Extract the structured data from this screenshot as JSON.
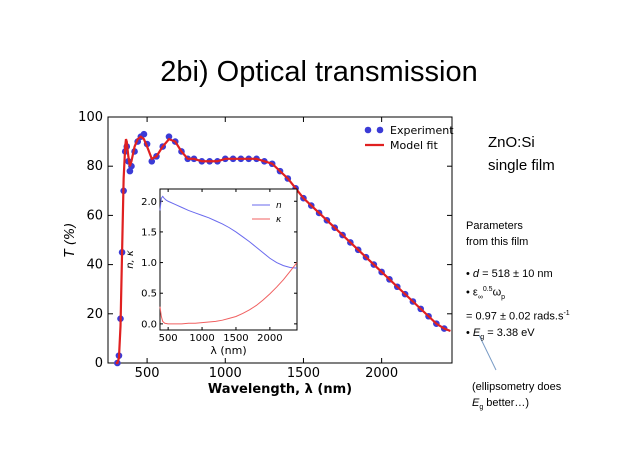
{
  "slide": {
    "title": "2bi) Optical transmission",
    "sample_label": [
      "ZnO:Si",
      "single film"
    ],
    "params_heading": [
      "Parameters",
      "from this film"
    ],
    "params": {
      "d_sym": "d",
      "d_val": " = 518 ± 10 nm",
      "eps_sym": "ε",
      "eps_sub": "∞",
      "eps_sup": "0.5",
      "omega_sym": "ω",
      "omega_sub": "p",
      "eps_val": "= 0.97 ± 0.02 rads.s",
      "eps_unit_sup": "-1",
      "eg_sym": "E",
      "eg_sub": "g",
      "eg_val": " = 3.38 eV",
      "bullet": "•"
    },
    "note": {
      "line1": "(ellipsometry does",
      "sym": "E",
      "sub": "g",
      "line2_rest": " better…)"
    },
    "colors": {
      "experiment": "#3b3bd6",
      "model": "#e02020",
      "n": "#6a6aee",
      "k": "#f06060"
    }
  },
  "chart_data": [
    {
      "type": "scatter",
      "xlabel": "Wavelength, λ (nm)",
      "ylabel": "T (%)",
      "xlim": [
        250,
        2450
      ],
      "ylim": [
        0,
        100
      ],
      "xticks": [
        500,
        1000,
        1500,
        2000
      ],
      "yticks": [
        0,
        20,
        40,
        60,
        80,
        100
      ],
      "legend": {
        "position": "top-right",
        "entries": [
          "Experiment",
          "Model fit"
        ]
      },
      "series": [
        {
          "name": "Experiment",
          "style": "markers",
          "x": [
            310,
            320,
            330,
            340,
            350,
            360,
            370,
            380,
            390,
            400,
            420,
            440,
            460,
            480,
            500,
            530,
            560,
            600,
            640,
            680,
            720,
            760,
            800,
            850,
            900,
            950,
            1000,
            1050,
            1100,
            1150,
            1200,
            1250,
            1300,
            1350,
            1400,
            1450,
            1500,
            1550,
            1600,
            1650,
            1700,
            1750,
            1800,
            1850,
            1900,
            1950,
            2000,
            2050,
            2100,
            2150,
            2200,
            2250,
            2300,
            2350,
            2400
          ],
          "y": [
            0,
            3,
            18,
            45,
            70,
            86,
            88,
            82,
            78,
            80,
            86,
            90,
            92,
            93,
            89,
            82,
            84,
            88,
            92,
            90,
            86,
            83,
            83,
            82,
            82,
            82,
            83,
            83,
            83,
            83,
            83,
            82,
            81,
            78,
            75,
            71,
            67,
            64,
            61,
            58,
            55,
            52,
            49,
            46,
            43,
            40,
            37,
            34,
            31,
            28,
            25,
            22,
            19,
            16,
            14
          ]
        },
        {
          "name": "Model fit",
          "style": "line",
          "x": [
            300,
            310,
            320,
            330,
            340,
            350,
            360,
            365,
            370,
            380,
            390,
            400,
            420,
            440,
            460,
            480,
            500,
            530,
            560,
            600,
            640,
            680,
            720,
            760,
            800,
            850,
            900,
            950,
            1000,
            1050,
            1100,
            1150,
            1200,
            1250,
            1300,
            1350,
            1400,
            1450,
            1500,
            1550,
            1600,
            1650,
            1700,
            1750,
            1800,
            1850,
            1900,
            1950,
            2000,
            2050,
            2100,
            2150,
            2200,
            2250,
            2300,
            2350,
            2400,
            2440
          ],
          "y": [
            0,
            0,
            2,
            15,
            45,
            75,
            88,
            91,
            90,
            84,
            80,
            82,
            88,
            91,
            92,
            91,
            88,
            83,
            84,
            88,
            91,
            90,
            86,
            83,
            83,
            82,
            82,
            82,
            83,
            83,
            83,
            83,
            83,
            82,
            81,
            78,
            75,
            71,
            67,
            64,
            61,
            58,
            55,
            52,
            49,
            46,
            43,
            40,
            37,
            34,
            31,
            28,
            25,
            22,
            19,
            16,
            14,
            13
          ]
        }
      ]
    },
    {
      "type": "line",
      "xlabel": "λ (nm)",
      "ylabel": "n, κ",
      "xlim": [
        380,
        2400
      ],
      "ylim": [
        -0.1,
        2.2
      ],
      "xticks": [
        500,
        1000,
        1500,
        2000
      ],
      "yticks": [
        0.0,
        0.5,
        1.0,
        1.5,
        2.0
      ],
      "legend": {
        "position": "top-right",
        "entries": [
          "n",
          "κ"
        ]
      },
      "series": [
        {
          "name": "n",
          "x": [
            380,
            390,
            400,
            420,
            440,
            470,
            500,
            600,
            700,
            800,
            900,
            1000,
            1100,
            1200,
            1300,
            1400,
            1500,
            1600,
            1700,
            1800,
            1900,
            2000,
            2100,
            2200,
            2300,
            2400
          ],
          "y": [
            1.85,
            1.95,
            2.05,
            2.08,
            2.05,
            2.02,
            2.0,
            1.95,
            1.9,
            1.85,
            1.81,
            1.77,
            1.73,
            1.68,
            1.63,
            1.57,
            1.5,
            1.42,
            1.34,
            1.25,
            1.16,
            1.07,
            1.0,
            0.95,
            0.92,
            0.91
          ]
        },
        {
          "name": "κ",
          "x": [
            380,
            400,
            420,
            450,
            500,
            600,
            700,
            800,
            900,
            1000,
            1100,
            1200,
            1300,
            1400,
            1500,
            1600,
            1700,
            1800,
            1900,
            2000,
            2100,
            2200,
            2300,
            2400
          ],
          "y": [
            0.28,
            0.12,
            0.04,
            0.01,
            0.0,
            0.0,
            0.0,
            0.01,
            0.01,
            0.02,
            0.03,
            0.04,
            0.06,
            0.09,
            0.12,
            0.17,
            0.23,
            0.3,
            0.39,
            0.49,
            0.6,
            0.72,
            0.86,
            1.0
          ]
        }
      ]
    }
  ]
}
